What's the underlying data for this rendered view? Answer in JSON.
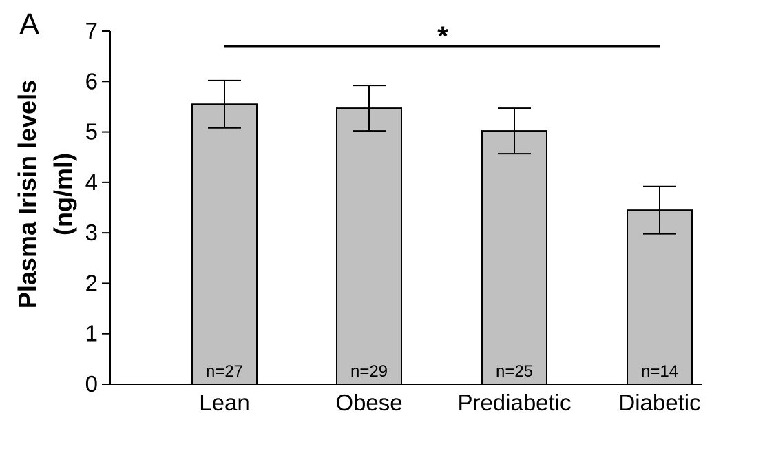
{
  "panel_label": "A",
  "chart_data": {
    "type": "bar",
    "categories": [
      "Lean",
      "Obese",
      "Prediabetic",
      "Diabetic"
    ],
    "values": [
      5.55,
      5.47,
      5.02,
      3.45
    ],
    "errors": [
      0.47,
      0.45,
      0.45,
      0.47
    ],
    "sample_sizes": [
      "n=27",
      "n=29",
      "n=25",
      "n=14"
    ],
    "title": "",
    "xlabel": "",
    "ylabel_line1": "Plasma Irisin levels",
    "ylabel_line2": "(ng/ml)",
    "ylim": [
      0,
      7
    ],
    "yticks": [
      0,
      1,
      2,
      3,
      4,
      5,
      6,
      7
    ],
    "ytick_labels": [
      "0",
      "1",
      "2",
      "3",
      "4",
      "5",
      "6",
      "7"
    ],
    "bar_color": "#c0c0c0",
    "grid": false,
    "significance": {
      "label": "*",
      "from_category": "Lean",
      "to_category": "Diabetic"
    }
  }
}
